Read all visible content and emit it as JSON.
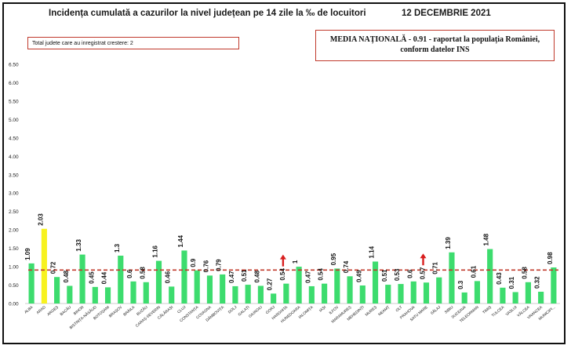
{
  "header": {
    "title": "Incidența cumulată a cazurilor la nivel județean pe 14 zile la ‰ de locuitori",
    "date": "12 DECEMBRIE 2021"
  },
  "info_boxes": {
    "counties_increase": "Total judete care au inregistrat crestere: 2",
    "national_line1": "MEDIA NAȚIONALĂ - 0.91 -  raportat la populația României,",
    "national_line2": "conform datelor INS"
  },
  "colors": {
    "bar": "#3ddc6e",
    "highlight_bar": "#f7f21f",
    "mean_line": "#c0392b",
    "arrow": "#d81e1e"
  },
  "chart_data": {
    "type": "bar",
    "title": "Incidența cumulată a cazurilor la nivel județean pe 14 zile la ‰ de locuitori",
    "xlabel": "",
    "ylabel": "",
    "ylim": [
      0,
      6.5
    ],
    "yticks": [
      0.0,
      0.5,
      1.0,
      1.5,
      2.0,
      2.5,
      3.0,
      3.5,
      4.0,
      4.5,
      5.0,
      5.5,
      6.0,
      6.5
    ],
    "ytick_labels": [
      "0.00",
      "0.50",
      "1.00",
      "1.50",
      "2.00",
      "2.50",
      "3.00",
      "3.50",
      "4.00",
      "4.50",
      "5.00",
      "5.50",
      "6.00",
      "6.50"
    ],
    "categories": [
      "ALBA",
      "ARAD",
      "ARGEȘ",
      "BACĂU",
      "BIHOR",
      "BISTRIȚA-NĂSĂUD",
      "BOTOȘANI",
      "BRAȘOV",
      "BRĂILA",
      "BUZĂU",
      "CARAȘ-SEVERIN",
      "CĂLĂRAȘI",
      "CLUJ",
      "CONSTANȚA",
      "COVASNA",
      "DÂMBOVIȚA",
      "DOLJ",
      "GALAȚI",
      "GIURGIU",
      "GORJ",
      "HARGHITA",
      "HUNEDOARA",
      "IALOMIȚA",
      "IAȘI",
      "ILFOV",
      "MARAMUREȘ",
      "MEHEDINȚI",
      "MUREȘ",
      "NEAMȚ",
      "OLT",
      "PRAHOVA",
      "SATU MARE",
      "SĂLAJ",
      "SIBIU",
      "SUCEAVA",
      "TELEORMAN",
      "TIMIȘ",
      "TULCEA",
      "VASLUI",
      "VÂLCEA",
      "VRANCEA",
      "MUNICIPIUL BUCUREȘTI"
    ],
    "category_labels": [
      "ALBA",
      "ARAD",
      "ARGEȘ",
      "BACĂU",
      "BIHOR",
      "BISTRIȚA-NĂSĂUD",
      "BOTOȘANI",
      "BRAȘOV",
      "BRĂILA",
      "BUZĂU",
      "CARAȘ-SEVERIN",
      "CĂLĂRAȘI",
      "CLUJ",
      "CONSTANȚA",
      "COVASNA",
      "DÂMBOVIȚA",
      "DOLJ",
      "GALAȚI",
      "GIURGIU",
      "GORJ",
      "HARGHITA",
      "HUNEDOARA",
      "IALOMIȚA",
      "IAȘI",
      "ILFOV",
      "MARAMUREȘ",
      "MEHEDINȚI",
      "MUREȘ",
      "NEAMȚ",
      "OLT",
      "PRAHOVA",
      "SATU MARE",
      "SĂLAJ",
      "SIBIU",
      "SUCEAVA",
      "TELEORMAN",
      "TIMIȘ",
      "TULCEA",
      "VASLUI",
      "VÂLCEA",
      "VRANCEA",
      "MUNICIPI..."
    ],
    "values": [
      1.09,
      2.03,
      0.72,
      0.48,
      1.33,
      0.45,
      0.44,
      1.3,
      0.6,
      0.58,
      1.16,
      0.46,
      1.44,
      0.9,
      0.76,
      0.79,
      0.47,
      0.51,
      0.48,
      0.27,
      0.54,
      1,
      0.47,
      0.54,
      0.95,
      0.74,
      0.49,
      1.14,
      0.51,
      0.53,
      0.6,
      0.57,
      0.71,
      1.39,
      0.3,
      0.61,
      1.48,
      0.43,
      0.31,
      0.58,
      0.32,
      0.98
    ],
    "value_labels": [
      "1.09",
      "2.03",
      "0.72",
      "0.48",
      "1.33",
      "0.45",
      "0.44",
      "1.3",
      "0.6",
      "0.58",
      "1.16",
      "0.46",
      "1.44",
      "0.9",
      "0.76",
      "0.79",
      "0.47",
      "0.51",
      "0.48",
      "0.27",
      "0.54",
      "1",
      "0.47",
      "0.54",
      "0.95",
      "0.74",
      "0.49",
      "1.14",
      "0.51",
      "0.53",
      "0.6",
      "0.57",
      "0.71",
      "1.39",
      "0.3",
      "0.61",
      "1.48",
      "0.43",
      "0.31",
      "0.58",
      "0.32",
      "0.98"
    ],
    "highlight": [
      "ARAD"
    ],
    "increase": [
      "HARGHITA",
      "SATU MARE"
    ],
    "reference_line": {
      "value": 0.91,
      "style": "dashed"
    },
    "grid": false,
    "legend": "none"
  }
}
